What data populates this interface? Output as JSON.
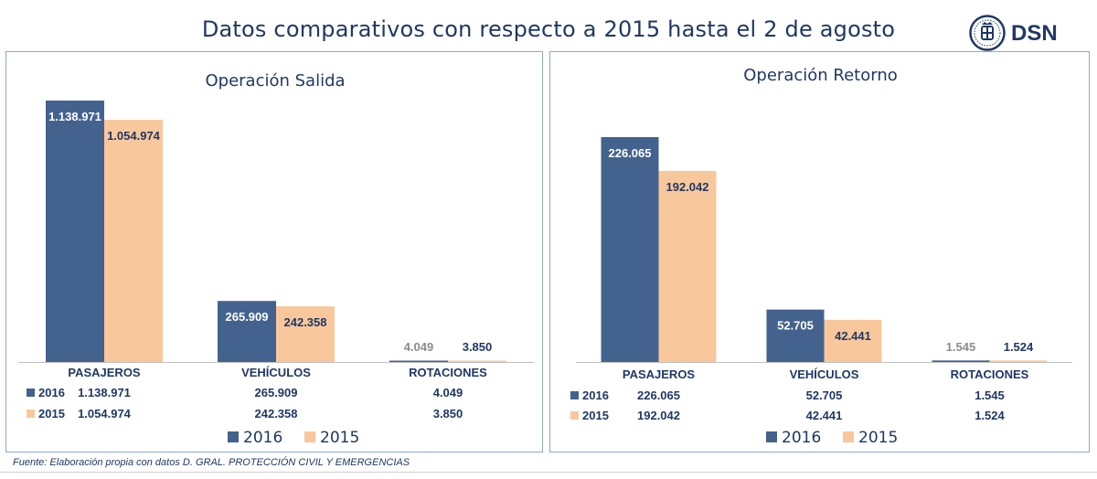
{
  "header": {
    "title": "Datos comparativos con respecto a 2015 hasta el 2 de agosto",
    "logo_text": "DSN"
  },
  "colors": {
    "series_2016": "#44628E",
    "series_2015": "#F9C79C",
    "text_dark": "#1F3864",
    "text_grey": "#8C8C8C"
  },
  "chart_data": [
    {
      "type": "bar",
      "title": "Operación Salida",
      "categories": [
        "PASAJEROS",
        "VEHÍCULOS",
        "ROTACIONES"
      ],
      "series": [
        {
          "name": "2016",
          "values": [
            1138971,
            265909,
            4049
          ],
          "labels": [
            "1.138.971",
            "265.909",
            "4.049"
          ]
        },
        {
          "name": "2015",
          "values": [
            1054974,
            242358,
            3850
          ],
          "labels": [
            "1.054.974",
            "242.358",
            "3.850"
          ]
        }
      ],
      "ylim": [
        0,
        1138971
      ],
      "legend": "bottom",
      "data_table": true
    },
    {
      "type": "bar",
      "title": "Operación Retorno",
      "categories": [
        "PASAJEROS",
        "VEHÍCULOS",
        "ROTACIONES"
      ],
      "series": [
        {
          "name": "2016",
          "values": [
            226065,
            52705,
            1545
          ],
          "labels": [
            "226.065",
            "52.705",
            "1.545"
          ]
        },
        {
          "name": "2015",
          "values": [
            192042,
            42441,
            1524
          ],
          "labels": [
            "192.042",
            "42.441",
            "1.524"
          ]
        }
      ],
      "ylim": [
        0,
        226065
      ],
      "legend": "bottom",
      "data_table": true
    }
  ],
  "footer": {
    "source": "Fuente:  Elaboración propia con datos D. GRAL. PROTECCIÓN CIVIL Y EMERGENCIAS"
  }
}
